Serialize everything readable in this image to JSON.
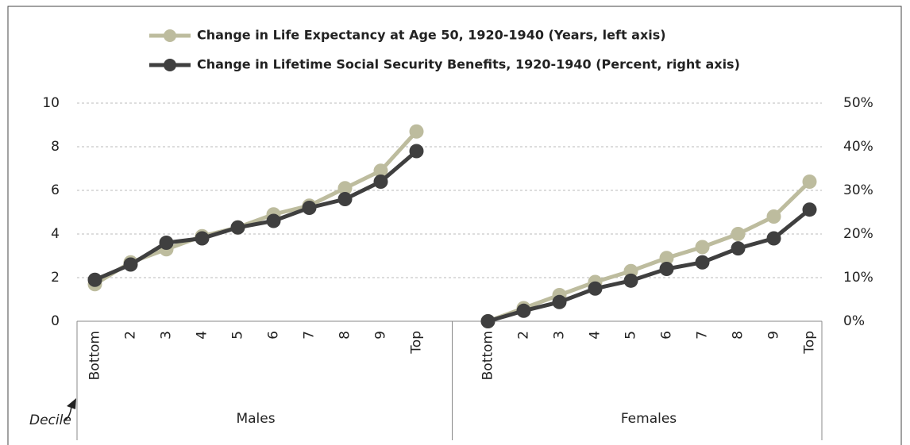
{
  "chart_data": {
    "type": "line",
    "categories": [
      "Bottom",
      "2",
      "3",
      "4",
      "5",
      "6",
      "7",
      "8",
      "9",
      "Top",
      null,
      "Bottom",
      "2",
      "3",
      "4",
      "5",
      "6",
      "7",
      "8",
      "9",
      "Top"
    ],
    "groups": [
      "Males",
      "Females"
    ],
    "annotation": "Decile",
    "series": [
      {
        "name": "Change in Life Expectancy at Age 50, 1920-1940 (Years, left axis)",
        "color": "#bdbc9e",
        "values": [
          1.7,
          2.7,
          3.3,
          3.9,
          4.3,
          4.9,
          5.3,
          6.1,
          6.9,
          8.7,
          null,
          0,
          0.6,
          1.2,
          1.8,
          2.3,
          2.9,
          3.4,
          4.0,
          4.8,
          6.4
        ]
      },
      {
        "name": "Change in Lifetime Social Security Benefits, 1920-1940 (Percent, right axis)",
        "color": "#3f3f3f",
        "axis": "y2",
        "values": [
          9.5,
          13,
          18,
          19,
          21.5,
          23,
          26,
          28,
          32,
          39,
          null,
          0,
          2.4,
          4.4,
          7.5,
          9.3,
          12,
          13.5,
          16.7,
          19,
          25.6
        ]
      }
    ],
    "ylim": [
      0,
      10
    ],
    "yticks": [
      0,
      2,
      4,
      6,
      8,
      10
    ],
    "y2lim": [
      0,
      50
    ],
    "y2ticks": [
      {
        "value": 0,
        "label": "0%"
      },
      {
        "value": 10,
        "label": "10%"
      },
      {
        "value": 20,
        "label": "20%"
      },
      {
        "value": 30,
        "label": "30%"
      },
      {
        "value": 40,
        "label": "40%"
      },
      {
        "value": 50,
        "label": "50%"
      }
    ],
    "grid": true
  }
}
